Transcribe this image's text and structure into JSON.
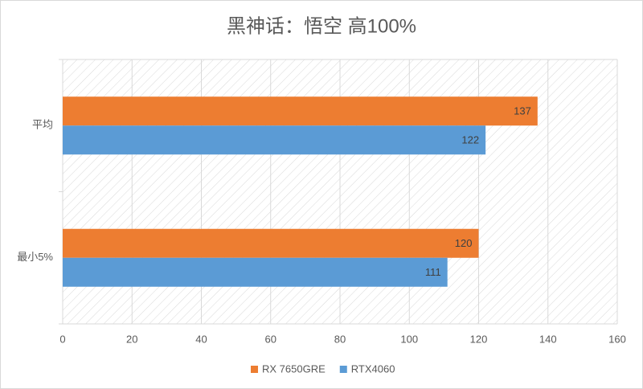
{
  "chart_data": {
    "type": "bar",
    "orientation": "horizontal",
    "title": "黑神话：悟空 高100%",
    "categories": [
      "平均",
      "最小5%"
    ],
    "series": [
      {
        "name": "RX 7650GRE",
        "color": "#ED7D31",
        "values": [
          137,
          120
        ]
      },
      {
        "name": "RTX4060",
        "color": "#5B9BD5",
        "values": [
          122,
          111
        ]
      }
    ],
    "xlim": [
      0,
      160
    ],
    "xticks": [
      0,
      20,
      40,
      60,
      80,
      100,
      120,
      140,
      160
    ],
    "grid": true,
    "legend": "bottom"
  }
}
